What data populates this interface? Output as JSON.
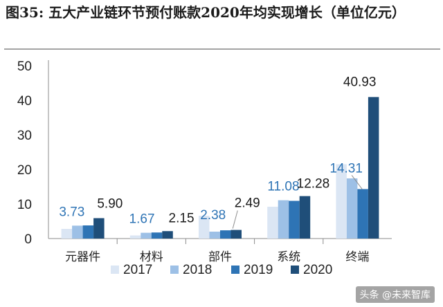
{
  "title": "图35: 五大产业链环节预付账款2020年均实现增长（单位亿元）",
  "watermark": "头条 @未来智库",
  "chart_data": {
    "type": "bar",
    "categories": [
      "元器件",
      "材料",
      "部件",
      "系统",
      "终端"
    ],
    "series": [
      {
        "name": "2017",
        "values": [
          2.8,
          0.9,
          6.6,
          9.2,
          21.5
        ],
        "color": "#dbe6f4"
      },
      {
        "name": "2018",
        "values": [
          3.73,
          1.67,
          2.0,
          11.08,
          17.4
        ],
        "color": "#9dc0e6"
      },
      {
        "name": "2019",
        "values": [
          3.8,
          1.75,
          2.38,
          10.9,
          14.31
        ],
        "color": "#2e74b5"
      },
      {
        "name": "2020",
        "values": [
          5.9,
          2.15,
          2.49,
          12.28,
          40.93
        ],
        "color": "#1f4e79"
      }
    ],
    "data_labels": [
      {
        "category": "元器件",
        "series": "2018",
        "text": "3.73",
        "color": "#2e74b5"
      },
      {
        "category": "元器件",
        "series": "2020",
        "text": "5.90",
        "color": "#1a1a1a"
      },
      {
        "category": "材料",
        "series": "2018",
        "text": "1.67",
        "color": "#2e74b5"
      },
      {
        "category": "材料",
        "series": "2020",
        "text": "2.15",
        "color": "#1a1a1a"
      },
      {
        "category": "部件",
        "series": "2019",
        "text": "2.38",
        "color": "#2e74b5"
      },
      {
        "category": "部件",
        "series": "2020",
        "text": "2.49",
        "color": "#1a1a1a"
      },
      {
        "category": "系统",
        "series": "2018",
        "text": "11.08",
        "color": "#2e74b5"
      },
      {
        "category": "系统",
        "series": "2020",
        "text": "12.28",
        "color": "#1a1a1a"
      },
      {
        "category": "终端",
        "series": "2019",
        "text": "14.31",
        "color": "#2e74b5"
      },
      {
        "category": "终端",
        "series": "2020",
        "text": "40.93",
        "color": "#1a1a1a"
      }
    ],
    "yticks": [
      "0",
      "10",
      "20",
      "30",
      "40",
      "50"
    ],
    "ylim": [
      0,
      50
    ],
    "xlabel": "",
    "ylabel": "",
    "grid": false,
    "legend_position": "bottom"
  }
}
